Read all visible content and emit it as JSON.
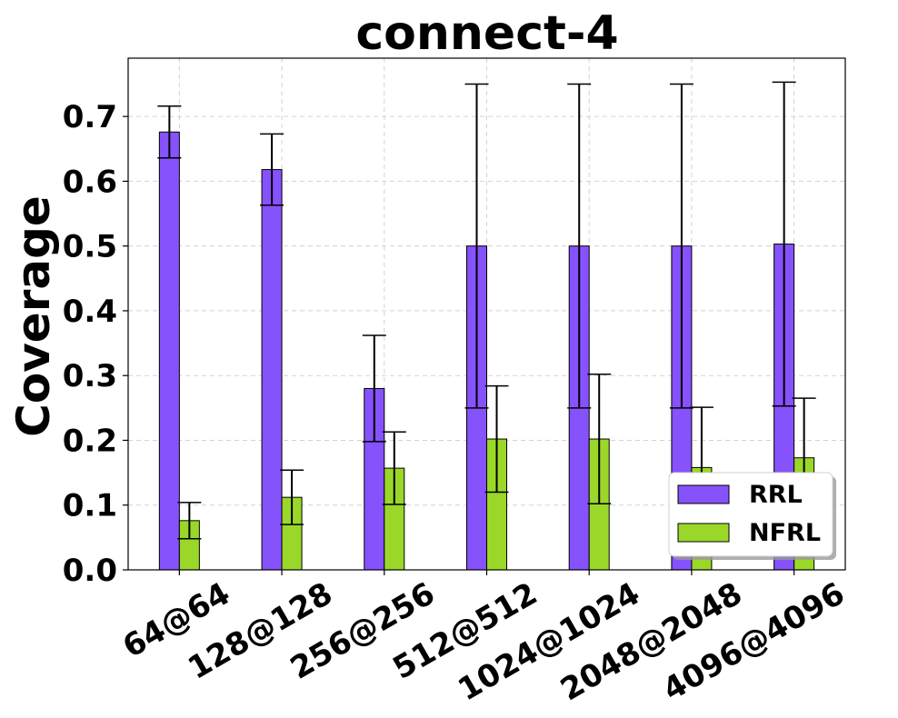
{
  "chart_data": {
    "type": "bar",
    "title": "connect-4",
    "xlabel": "",
    "ylabel": "Coverage",
    "categories": [
      "64@64",
      "128@128",
      "256@256",
      "512@512",
      "1024@1024",
      "2048@2048",
      "4096@4096"
    ],
    "ylim": [
      0,
      0.79
    ],
    "yticks": [
      "0.0",
      "0.1",
      "0.2",
      "0.3",
      "0.4",
      "0.5",
      "0.6",
      "0.7"
    ],
    "grid": true,
    "legend_position": "bottom-right",
    "series": [
      {
        "name": "RRL",
        "color": "#8652fb",
        "values": [
          0.676,
          0.618,
          0.28,
          0.5,
          0.5,
          0.5,
          0.503
        ],
        "error": [
          0.04,
          0.055,
          0.082,
          0.25,
          0.25,
          0.25,
          0.25
        ]
      },
      {
        "name": "NFRL",
        "color": "#9ad729",
        "values": [
          0.076,
          0.112,
          0.157,
          0.202,
          0.202,
          0.158,
          0.173
        ],
        "error": [
          0.028,
          0.042,
          0.056,
          0.082,
          0.1,
          0.093,
          0.092
        ]
      }
    ]
  }
}
